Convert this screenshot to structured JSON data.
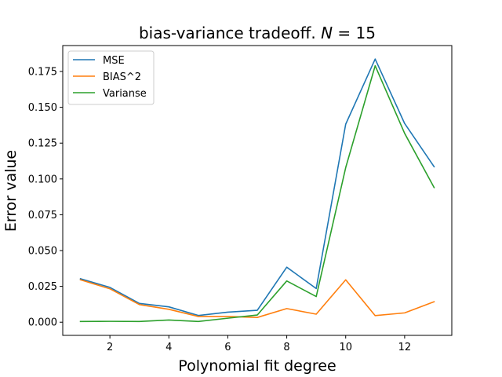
{
  "chart_data": {
    "type": "line",
    "title": "bias-variance tradeoff. N = 15",
    "title_parts": {
      "prefix": "bias-variance tradeoff. ",
      "var": "N",
      "rest": " = 15"
    },
    "xlabel": "Polynomial fit degree",
    "ylabel": "Error value",
    "x": [
      1,
      2,
      3,
      4,
      5,
      6,
      7,
      8,
      9,
      10,
      11,
      12,
      13
    ],
    "xlim": [
      0.4,
      13.6
    ],
    "ylim": [
      -0.0092,
      0.1931
    ],
    "xticks": [
      2,
      4,
      6,
      8,
      10,
      12
    ],
    "yticks": [
      0.0,
      0.025,
      0.05,
      0.075,
      0.1,
      0.125,
      0.15,
      0.175
    ],
    "ytick_labels": [
      "0.000",
      "0.025",
      "0.050",
      "0.075",
      "0.100",
      "0.125",
      "0.150",
      "0.175"
    ],
    "grid": false,
    "legend_position": "upper-left",
    "series": [
      {
        "name": "MSE",
        "color": "#1f77b4",
        "values": [
          0.0303,
          0.0243,
          0.0131,
          0.0107,
          0.0047,
          0.007,
          0.0083,
          0.0384,
          0.0235,
          0.1382,
          0.1837,
          0.1387,
          0.1085
        ]
      },
      {
        "name": "BIAS^2",
        "color": "#ff7f0e",
        "values": [
          0.0296,
          0.0233,
          0.0123,
          0.009,
          0.004,
          0.004,
          0.0033,
          0.0095,
          0.0056,
          0.0296,
          0.0046,
          0.0065,
          0.0143
        ]
      },
      {
        "name": "Varianse",
        "color": "#2ca02c",
        "values": [
          0.0005,
          0.0006,
          0.0005,
          0.0015,
          0.0005,
          0.0028,
          0.005,
          0.0288,
          0.0179,
          0.1079,
          0.179,
          0.1318,
          0.094
        ]
      }
    ]
  }
}
